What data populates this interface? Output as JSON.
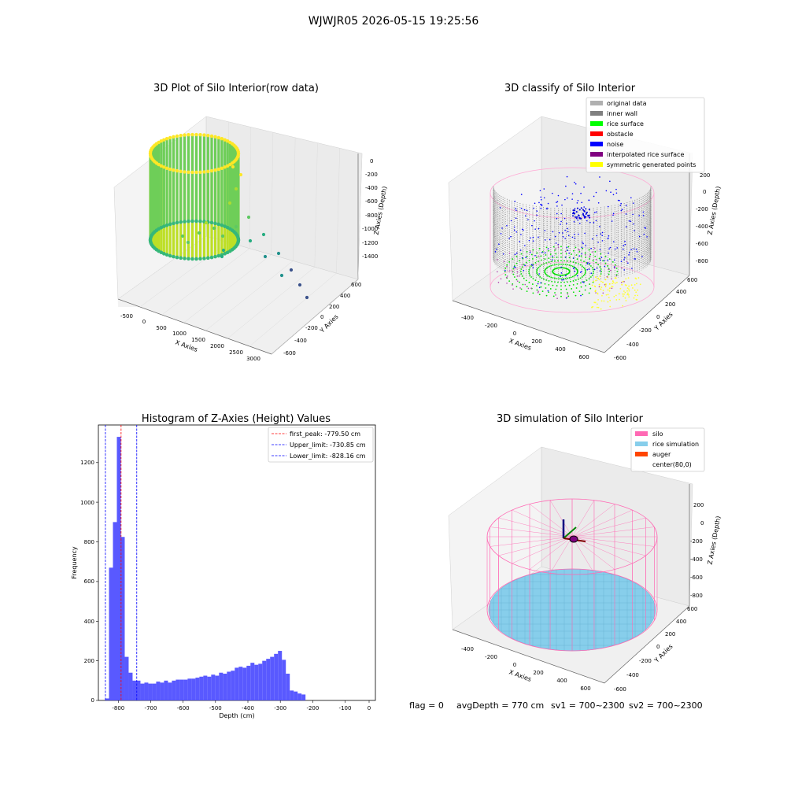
{
  "suptitle": "WJWJR05 2026-05-15 19:25:56",
  "footer": {
    "flag": "flag = 0",
    "avg_depth": "avgDepth = 770 cm",
    "sv1": "sv1 = 700~2300",
    "sv2": "sv2 = 700~2300"
  },
  "colors": {
    "grey_light": "#b0b0b0",
    "grey_dark": "#808080",
    "green": "#00ff00",
    "red": "#ff0000",
    "blue": "#0000ff",
    "purple": "#800080",
    "yellow": "#ffff00",
    "pink": "#ff69b4",
    "skyblue": "#87ceeb",
    "orange": "#ff4500",
    "hist_blue": "#5050ff",
    "hist_edge": "#0000ff"
  },
  "panels": {
    "raw": {
      "title": "3D Plot of Silo Interior(row data)",
      "xlabel": "X Axies",
      "ylabel": "Y Axies",
      "zlabel": "Z Axies (Depth)",
      "xticks": [
        "-500",
        "0",
        "500",
        "1000",
        "1500",
        "2000",
        "2500",
        "3000"
      ],
      "yticks": [
        "600",
        "400",
        "200",
        "0",
        "-200",
        "-400",
        "-600"
      ],
      "zticks": [
        "0",
        "-200",
        "-400",
        "-600",
        "-800",
        "-1000",
        "-1200",
        "-1400"
      ]
    },
    "classify": {
      "title": "3D classify of Silo Interior",
      "legend": [
        "original data",
        "inner wall",
        "rice surface",
        "obstacle",
        "noise",
        "interpolated rice surface",
        "symmetric generated points"
      ],
      "xlabel": "X Axies",
      "ylabel": "Y Axies",
      "zlabel": "Z Axies (Depth)",
      "xticks": [
        "-400",
        "-200",
        "0",
        "200",
        "400",
        "600"
      ],
      "yticks": [
        "600",
        "400",
        "200",
        "0",
        "-200",
        "-400",
        "-600"
      ],
      "zticks": [
        "200",
        "0",
        "-200",
        "-400",
        "-600",
        "-800"
      ]
    },
    "hist": {
      "title": "Histogram of Z-Axies (Height) Values",
      "xlabel": "Depth (cm)",
      "ylabel": "Frequency",
      "xticks": [
        "-800",
        "-700",
        "-600",
        "-500",
        "-400",
        "-300",
        "-200",
        "-100",
        "0"
      ],
      "yticks": [
        "0",
        "200",
        "400",
        "600",
        "800",
        "1000",
        "1200"
      ],
      "legend": [
        "first_peak: -779.50 cm",
        "Upper_limit: -730.85 cm",
        "Lower_limit: -828.16 cm"
      ]
    },
    "sim": {
      "title": "3D simulation of Silo Interior",
      "legend": [
        "silo",
        "rice simulation",
        "auger",
        "center(80,0)"
      ],
      "xlabel": "X Axies",
      "ylabel": "Y Axies",
      "zlabel": "Z Axies (Depth)",
      "xticks": [
        "-400",
        "-200",
        "0",
        "200",
        "400",
        "600"
      ],
      "yticks": [
        "600",
        "400",
        "200",
        "0",
        "-200",
        "-400",
        "-600"
      ],
      "zticks": [
        "200",
        "0",
        "-200",
        "-400",
        "-600",
        "-800"
      ]
    }
  },
  "chart_data": [
    {
      "type": "scatter",
      "title": "3D Plot of Silo Interior(row data)",
      "xlabel": "X Axies",
      "ylabel": "Y Axies",
      "zlabel": "Z Axies (Depth)",
      "xlim": [
        -600,
        3200
      ],
      "ylim": [
        -650,
        650
      ],
      "zlim": [
        -1500,
        50
      ],
      "colormap": "viridis"
    },
    {
      "type": "scatter",
      "title": "3D classify of Silo Interior",
      "xlabel": "X Axies",
      "ylabel": "Y Axies",
      "zlabel": "Z Axies (Depth)",
      "xlim": [
        -500,
        700
      ],
      "ylim": [
        -650,
        650
      ],
      "zlim": [
        -900,
        250
      ],
      "series": [
        {
          "name": "original data"
        },
        {
          "name": "inner wall"
        },
        {
          "name": "rice surface"
        },
        {
          "name": "obstacle"
        },
        {
          "name": "noise"
        },
        {
          "name": "interpolated rice surface"
        },
        {
          "name": "symmetric generated points"
        }
      ]
    },
    {
      "type": "bar",
      "title": "Histogram of Z-Axies (Height) Values",
      "xlabel": "Depth (cm)",
      "ylabel": "Frequency",
      "xlim": [
        -850,
        10
      ],
      "ylim": [
        0,
        1390
      ],
      "bin_edges_start": -829.2,
      "bin_width": 12.2,
      "values": [
        10,
        670,
        900,
        1330,
        825,
        220,
        140,
        100,
        100,
        85,
        90,
        85,
        85,
        95,
        90,
        100,
        90,
        100,
        105,
        105,
        105,
        110,
        110,
        115,
        120,
        125,
        120,
        130,
        125,
        140,
        135,
        145,
        150,
        165,
        170,
        165,
        175,
        190,
        180,
        185,
        200,
        210,
        220,
        235,
        250,
        205,
        135,
        50,
        45,
        35,
        30
      ],
      "vlines": [
        {
          "name": "first_peak: -779.50 cm",
          "x": -779.5,
          "color": "#ff0000"
        },
        {
          "name": "Upper_limit: -730.85 cm",
          "x": -730.85,
          "color": "#0000ff"
        },
        {
          "name": "Lower_limit: -828.16 cm",
          "x": -828.16,
          "color": "#0000ff"
        }
      ]
    },
    {
      "type": "scatter",
      "title": "3D simulation of Silo Interior",
      "xlabel": "X Axies",
      "ylabel": "Y Axies",
      "zlabel": "Z Axies (Depth)",
      "xlim": [
        -500,
        700
      ],
      "ylim": [
        -650,
        650
      ],
      "zlim": [
        -900,
        250
      ],
      "series": [
        {
          "name": "silo"
        },
        {
          "name": "rice simulation"
        },
        {
          "name": "auger"
        },
        {
          "name": "center(80,0)"
        }
      ]
    }
  ]
}
